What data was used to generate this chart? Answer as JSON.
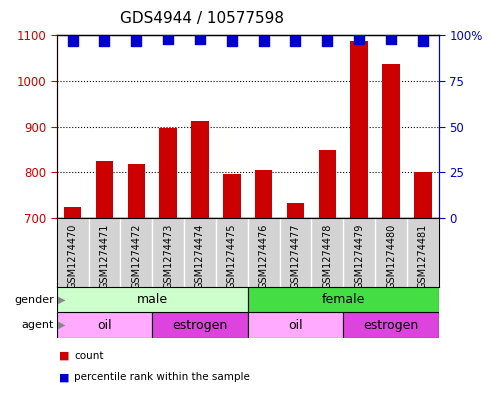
{
  "title": "GDS4944 / 10577598",
  "samples": [
    "GSM1274470",
    "GSM1274471",
    "GSM1274472",
    "GSM1274473",
    "GSM1274474",
    "GSM1274475",
    "GSM1274476",
    "GSM1274477",
    "GSM1274478",
    "GSM1274479",
    "GSM1274480",
    "GSM1274481"
  ],
  "counts": [
    725,
    825,
    818,
    898,
    912,
    796,
    805,
    733,
    848,
    1088,
    1038,
    802
  ],
  "percentile_ranks": [
    97,
    97,
    97,
    98,
    98,
    97,
    97,
    97,
    97,
    98,
    98,
    97
  ],
  "ylim_left": [
    700,
    1100
  ],
  "ylim_right": [
    0,
    100
  ],
  "yticks_left": [
    700,
    800,
    900,
    1000,
    1100
  ],
  "yticks_right": [
    0,
    25,
    50,
    75,
    100
  ],
  "bar_color": "#cc0000",
  "dot_color": "#0000cc",
  "gender_male_color": "#ccffcc",
  "gender_female_color": "#44dd44",
  "agent_oil_color": "#ffaaff",
  "agent_estrogen_color": "#dd44dd",
  "bar_width": 0.55,
  "dot_size": 60,
  "left_tick_color": "#cc0000",
  "right_tick_color": "#0000cc",
  "label_bg_color": "#d3d3d3",
  "agent_groups": [
    [
      "oil",
      0,
      3
    ],
    [
      "estrogen",
      3,
      6
    ],
    [
      "oil",
      6,
      9
    ],
    [
      "estrogen",
      9,
      12
    ]
  ],
  "gender_groups": [
    [
      "male",
      0,
      6,
      "#ccffcc"
    ],
    [
      "female",
      6,
      12,
      "#44dd44"
    ]
  ]
}
